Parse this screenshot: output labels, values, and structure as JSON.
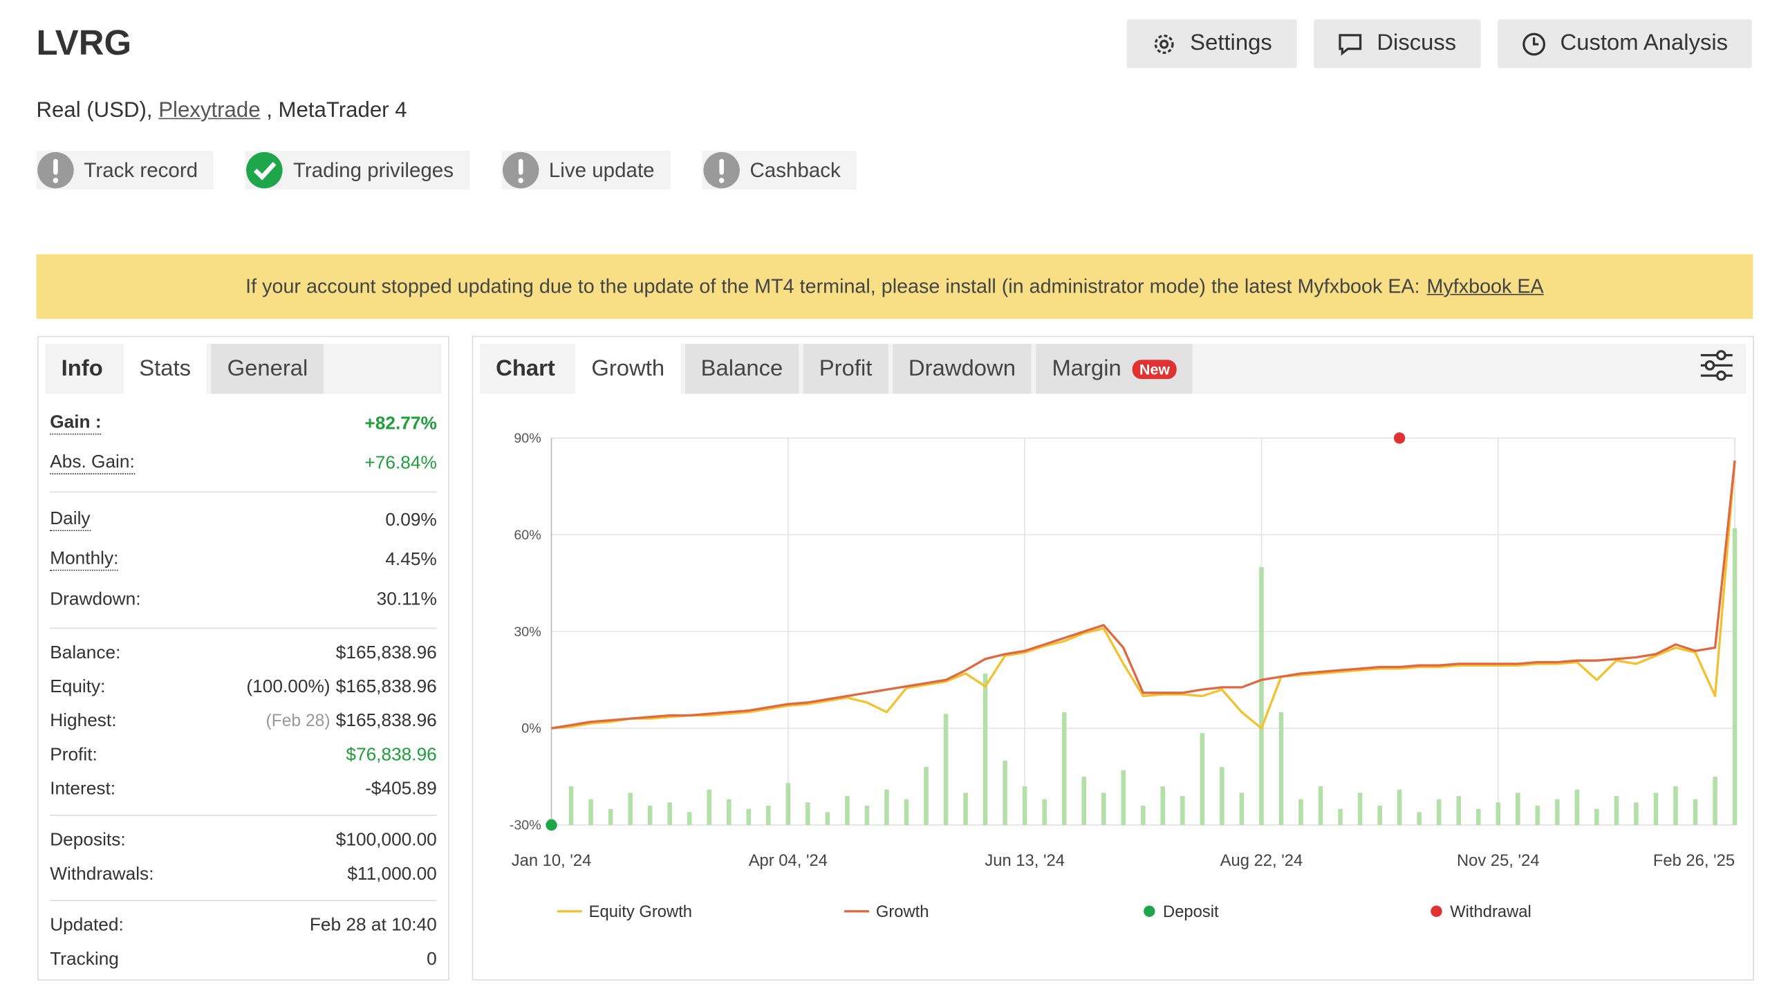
{
  "header": {
    "title": "LVRG",
    "account": {
      "prefix": "Real (USD),",
      "broker": "Plexytrade",
      "suffix": ", MetaTrader 4"
    },
    "buttons": [
      "Settings",
      "Discuss",
      "Custom Analysis"
    ],
    "badges": [
      {
        "label": "Track record",
        "status": "warning"
      },
      {
        "label": "Trading privileges",
        "status": "ok"
      },
      {
        "label": "Live update",
        "status": "warning"
      },
      {
        "label": "Cashback",
        "status": "warning"
      }
    ]
  },
  "notice": {
    "text": "If your account stopped updating due to the update of the MT4 terminal, please install (in administrator mode) the latest Myfxbook EA:",
    "link": "Myfxbook EA"
  },
  "stats_panel": {
    "heading": "Info",
    "tabs": [
      "Stats",
      "General"
    ],
    "active_tab": 0,
    "groups": [
      [
        {
          "label": "Gain :",
          "value": "+82.77%",
          "color": "green",
          "hint": true,
          "strong": true
        },
        {
          "label": "Abs. Gain:",
          "value": "+76.84%",
          "color": "green",
          "hint": true
        }
      ],
      [
        {
          "label": "Daily",
          "value": "0.09%",
          "hint": true
        },
        {
          "label": "Monthly:",
          "value": "4.45%",
          "hint": true
        },
        {
          "label": "Drawdown:",
          "value": "30.11%"
        }
      ],
      [
        {
          "label": "Balance:",
          "value": "$165,838.96"
        },
        {
          "label": "Equity:",
          "note": "(100.00%)",
          "value": "$165,838.96"
        },
        {
          "label": "Highest:",
          "note": "(Feb 28)",
          "note_muted": true,
          "value": "$165,838.96"
        },
        {
          "label": "Profit:",
          "value": "$76,838.96",
          "color": "green"
        },
        {
          "label": "Interest:",
          "value": "-$405.89"
        }
      ],
      [
        {
          "label": "Deposits:",
          "value": "$100,000.00"
        },
        {
          "label": "Withdrawals:",
          "value": "$11,000.00"
        }
      ],
      [
        {
          "label": "Updated:",
          "value": "Feb 28 at 10:40"
        },
        {
          "label": "Tracking",
          "value": "0"
        }
      ]
    ]
  },
  "chart_panel": {
    "heading": "Chart",
    "tabs": [
      "Growth",
      "Balance",
      "Profit",
      "Drawdown",
      "Margin"
    ],
    "active_tab": 0,
    "new_badge": {
      "tab": 4,
      "text": "New"
    }
  },
  "chart_data": {
    "type": "line",
    "categories": [
      "Jan 10, '24",
      null,
      null,
      null,
      null,
      null,
      null,
      null,
      null,
      null,
      null,
      null,
      "Apr 04, '24",
      null,
      null,
      null,
      null,
      null,
      null,
      null,
      null,
      null,
      null,
      null,
      "Jun 13, '24",
      null,
      null,
      null,
      null,
      null,
      null,
      null,
      null,
      null,
      null,
      null,
      "Aug 22, '24",
      null,
      null,
      null,
      null,
      null,
      null,
      null,
      null,
      null,
      null,
      null,
      "Nov 25, '24",
      null,
      null,
      null,
      null,
      null,
      null,
      null,
      null,
      null,
      null,
      null,
      "Feb 26, '25"
    ],
    "ylim": [
      -30,
      90
    ],
    "yticks": [
      {
        "value": -30,
        "label": "-30%"
      },
      {
        "value": 0,
        "label": "0%"
      },
      {
        "value": 30,
        "label": "30%"
      },
      {
        "value": 60,
        "label": "60%"
      },
      {
        "value": 90,
        "label": "90%"
      }
    ],
    "grid": true,
    "series": [
      {
        "name": "Equity Growth",
        "type": "line",
        "color": "#f2c12e",
        "values": [
          0,
          0.5,
          1.5,
          2,
          3,
          3,
          3.5,
          4,
          4,
          4.5,
          5,
          6,
          7,
          7.5,
          8.5,
          9.5,
          8,
          5,
          12.5,
          13.5,
          14.5,
          17,
          13,
          22.5,
          23.5,
          25.5,
          27,
          29.5,
          31,
          20,
          10,
          10.5,
          10.5,
          10,
          12,
          5,
          0,
          16,
          16.5,
          17,
          17.5,
          18,
          18.5,
          18.5,
          19,
          19,
          19.5,
          19.5,
          19.5,
          19.5,
          20,
          20,
          20.5,
          15,
          21,
          20,
          22.5,
          25,
          23.5,
          10,
          83
        ]
      },
      {
        "name": "Growth",
        "type": "line",
        "color": "#e0673f",
        "values": [
          0,
          1,
          2,
          2.5,
          3,
          3.5,
          4,
          4,
          4.5,
          5,
          5.5,
          6.5,
          7.5,
          8,
          9,
          10,
          11,
          12,
          13,
          14,
          15,
          18,
          21.5,
          23,
          24,
          26,
          28,
          30,
          32,
          25,
          11,
          11,
          11,
          12,
          12.7,
          12.7,
          15,
          16,
          17,
          17.5,
          18,
          18.5,
          19,
          19,
          19.5,
          19.5,
          20,
          20,
          20,
          20,
          20.5,
          20.5,
          21,
          21,
          21.5,
          22,
          23,
          26,
          24,
          25,
          83
        ]
      },
      {
        "type": "bar",
        "color": "#b3dfa8",
        "values": [
          -28,
          -18,
          -22,
          -25,
          -20,
          -24,
          -23,
          -26,
          -19,
          -22,
          -25,
          -24,
          -17,
          -23,
          -26,
          -21,
          -24,
          -19,
          -22,
          -12,
          4.5,
          -20,
          17,
          -10,
          -18,
          -22,
          5,
          -15,
          -20,
          -13,
          -24,
          -18,
          -21,
          -1.5,
          -12,
          -20,
          50,
          5,
          -22,
          -18,
          -25,
          -20,
          -24,
          -19,
          -26,
          -22,
          -21,
          -25,
          -23,
          -20,
          -24,
          -22,
          -19,
          -25,
          -21,
          -23,
          -20,
          -18,
          -22,
          -15,
          62
        ]
      },
      {
        "name": "Deposit",
        "type": "scatter",
        "color": "#1fa64a",
        "values": [
          -30,
          null,
          null,
          null,
          null,
          null,
          null,
          null,
          null,
          null,
          null,
          null,
          null,
          null,
          null,
          null,
          null,
          null,
          null,
          null,
          null,
          null,
          null,
          null,
          null,
          null,
          null,
          null,
          null,
          null,
          null,
          null,
          null,
          null,
          null,
          null,
          null,
          null,
          null,
          null,
          null,
          null,
          null,
          null,
          null,
          null,
          null,
          null,
          null,
          null,
          null,
          null,
          null,
          null,
          null,
          null,
          null,
          null,
          null,
          null,
          null
        ]
      },
      {
        "name": "Withdrawal",
        "type": "scatter",
        "color": "#e03232",
        "values": [
          null,
          null,
          null,
          null,
          null,
          null,
          null,
          null,
          null,
          null,
          null,
          null,
          null,
          null,
          null,
          null,
          null,
          null,
          null,
          null,
          null,
          null,
          null,
          null,
          null,
          null,
          null,
          null,
          null,
          null,
          null,
          null,
          null,
          null,
          null,
          null,
          null,
          null,
          null,
          null,
          null,
          null,
          null,
          90,
          null,
          null,
          null,
          null,
          null,
          null,
          null,
          null,
          null,
          null,
          null,
          null,
          null,
          null,
          null,
          null,
          null
        ]
      }
    ]
  }
}
